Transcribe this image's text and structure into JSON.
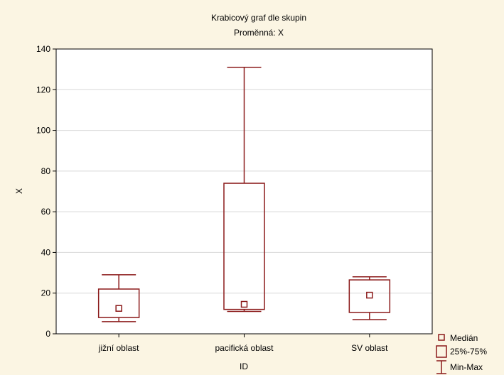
{
  "chart_data": {
    "type": "box",
    "title": "Krabicový graf dle skupin",
    "subtitle": "Proměnná: X",
    "xlabel": "ID",
    "ylabel": "X",
    "ylim": [
      0,
      140
    ],
    "yticks": [
      "0",
      "20",
      "40",
      "60",
      "80",
      "100",
      "120",
      "140"
    ],
    "grid": true,
    "legend_position": "bottom-right",
    "categories": [
      "jižní oblast",
      "pacifická oblast",
      "SV oblast"
    ],
    "boxes": [
      {
        "min": 6,
        "q1": 8,
        "median": 12.5,
        "q3": 22,
        "max": 29
      },
      {
        "min": 11,
        "q1": 12,
        "median": 14.5,
        "q3": 74,
        "max": 131
      },
      {
        "min": 7,
        "q1": 10.5,
        "median": 19,
        "q3": 26.5,
        "max": 28
      }
    ],
    "legend": [
      "Medián",
      "25%-75%",
      "Min-Max"
    ],
    "colors": {
      "box": "#8b1a1a",
      "background": "#fbf5e3",
      "plot": "#ffffff",
      "grid": "#d8d8d8"
    }
  }
}
